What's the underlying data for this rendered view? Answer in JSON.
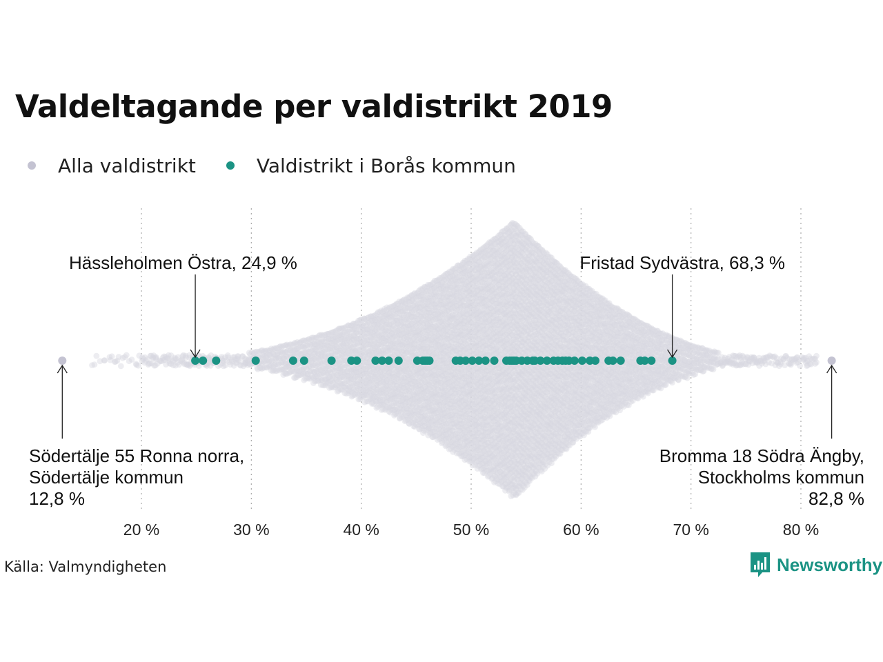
{
  "title": "Valdeltagande per valdistrikt 2019",
  "legend": [
    {
      "label": "Alla valdistrikt",
      "color": "#c4c3d2"
    },
    {
      "label": "Valdistrikt i Borås kommun",
      "color": "#1b9384"
    }
  ],
  "source": "Källa: Valmyndigheten",
  "brand": {
    "name": "Newsworthy",
    "color": "#1b9384",
    "icon": "newsworthy-logo-icon"
  },
  "chart_data": {
    "type": "scatter",
    "subtype": "beeswarm",
    "x_axis": {
      "range": [
        12,
        84
      ],
      "ticks": [
        20,
        30,
        40,
        50,
        60,
        70,
        80
      ],
      "tick_labels": [
        "20 %",
        "30 %",
        "40 %",
        "50 %",
        "60 %",
        "70 %",
        "80 %"
      ],
      "grid": true
    },
    "series": [
      {
        "name": "Alla valdistrikt",
        "color": "#c4c3d2",
        "min": 12.8,
        "max": 82.8,
        "peak": 53.9,
        "outliers": [
          12.8,
          82.8
        ]
      },
      {
        "name": "Valdistrikt i Borås kommun",
        "color": "#1b9384",
        "values": [
          24.9,
          25.6,
          26.8,
          30.4,
          33.8,
          34.8,
          37.3,
          39.1,
          39.6,
          41.3,
          41.9,
          42.5,
          43.4,
          45.1,
          45.6,
          45.8,
          46.0,
          46.2,
          48.6,
          49.0,
          49.5,
          50.1,
          50.7,
          51.3,
          52.1,
          53.2,
          53.5,
          53.7,
          53.9,
          54.1,
          54.6,
          55.1,
          55.6,
          55.8,
          56.3,
          56.9,
          57.5,
          57.9,
          58.3,
          58.6,
          58.9,
          59.4,
          60.1,
          60.8,
          61.3,
          62.5,
          62.9,
          63.6,
          65.4,
          65.8,
          66.4,
          68.3
        ]
      }
    ],
    "annotations": [
      {
        "text": "Hässleholmen Östra, 24,9 %",
        "value": 24.9
      },
      {
        "text": "Fristad Sydvästra, 68,3 %",
        "value": 68.3
      },
      {
        "lines": [
          "Södertälje 55 Ronna norra,",
          "Södertälje kommun",
          "12,8 %"
        ],
        "value": 12.8
      },
      {
        "lines": [
          "Bromma 18 Södra Ängby,",
          "Stockholms kommun",
          "82,8 %"
        ],
        "value": 82.8
      }
    ]
  }
}
